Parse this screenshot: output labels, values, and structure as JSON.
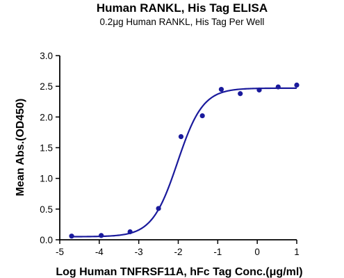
{
  "chart_data": {
    "type": "scatter",
    "title": "Human RANKL, His Tag ELISA",
    "subtitle": "0.2μg Human RANKL, His Tag Per Well",
    "xlabel": "Log Human TNFRSF11A, hFc Tag Conc.(μg/ml)",
    "ylabel": "Mean Abs.(OD450)",
    "xlim": [
      -5,
      1
    ],
    "ylim": [
      0,
      3
    ],
    "xticks": [
      -5,
      -4,
      -3,
      -2,
      -1,
      0,
      1
    ],
    "yticks": [
      0.0,
      0.5,
      1.0,
      1.5,
      2.0,
      2.5,
      3.0
    ],
    "xtick_labels": [
      "-5",
      "-4",
      "-3",
      "-2",
      "-1",
      "0",
      "1"
    ],
    "ytick_labels": [
      "0.0",
      "0.5",
      "1.0",
      "1.5",
      "2.0",
      "2.5",
      "3.0"
    ],
    "grid": false,
    "series": [
      {
        "points": [
          {
            "x": -4.7,
            "y": 0.06
          },
          {
            "x": -3.95,
            "y": 0.07
          },
          {
            "x": -3.22,
            "y": 0.13
          },
          {
            "x": -2.5,
            "y": 0.51
          },
          {
            "x": -1.93,
            "y": 1.68
          },
          {
            "x": -1.39,
            "y": 2.02
          },
          {
            "x": -0.91,
            "y": 2.45
          },
          {
            "x": -0.43,
            "y": 2.38
          },
          {
            "x": 0.05,
            "y": 2.44
          },
          {
            "x": 0.53,
            "y": 2.49
          },
          {
            "x": 1.0,
            "y": 2.52
          }
        ],
        "fit": {
          "model": "4PL",
          "bottom": 0.05,
          "top": 2.47,
          "logEC50": -2.02,
          "hill": 1.35
        }
      }
    ],
    "colors": {
      "series": "#1a1a9c",
      "axis": "#000000"
    }
  }
}
